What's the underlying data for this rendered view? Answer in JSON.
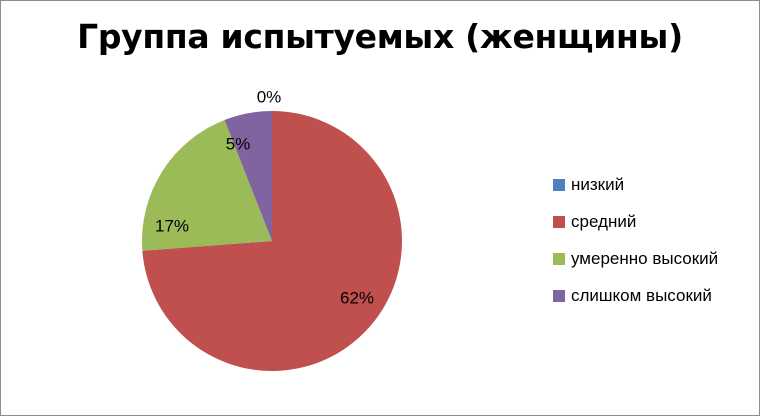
{
  "chart_data": {
    "type": "pie",
    "title": "Группа испытуемых (женщины)",
    "categories": [
      "низкий",
      "средний",
      "умеренно высокий",
      "слишком высокий"
    ],
    "values": [
      0,
      62,
      17,
      5
    ],
    "data_labels": [
      "0%",
      "62%",
      "17%",
      "5%"
    ],
    "colors": [
      "#4F81BD",
      "#C0504D",
      "#9BBB59",
      "#8064A2"
    ],
    "legend_position": "right"
  }
}
